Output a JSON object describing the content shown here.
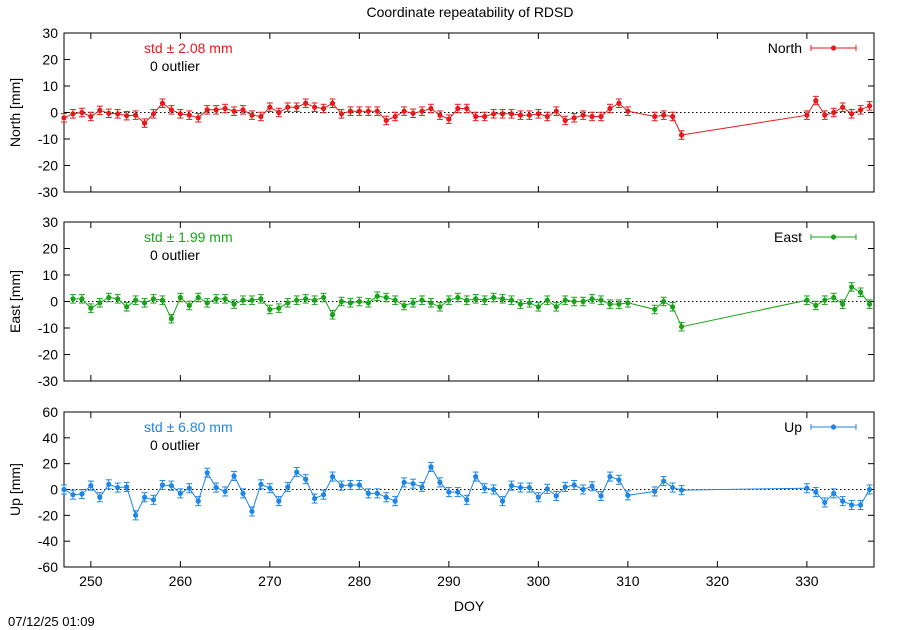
{
  "title": "Coordinate repeatability of RDSD",
  "timestamp": "07/12/25 01:09",
  "colors": {
    "North": "#e41a1c",
    "East": "#1aa31a",
    "Up": "#1f86e6"
  },
  "chart_data": [
    {
      "type": "line",
      "component": "North",
      "ylabel": "North [mm]",
      "xlabel": "",
      "xlim": [
        247,
        337.5
      ],
      "ylim": [
        -30,
        30
      ],
      "yticks": [
        -30,
        -20,
        -10,
        0,
        10,
        20,
        30
      ],
      "xticks": [
        250,
        260,
        270,
        280,
        290,
        300,
        310,
        320,
        330
      ],
      "std_label": "std ± 2.08 mm",
      "outlier_label": "0 outlier",
      "legend": "North",
      "legend_position": "top-right",
      "series": [
        {
          "name": "North",
          "x": [
            247,
            248,
            249,
            250,
            251,
            252,
            253,
            254,
            255,
            256,
            257,
            258,
            259,
            260,
            261,
            262,
            263,
            264,
            265,
            266,
            267,
            268,
            269,
            270,
            271,
            272,
            273,
            274,
            275,
            276,
            277,
            278,
            279,
            280,
            281,
            282,
            283,
            284,
            285,
            286,
            287,
            288,
            289,
            290,
            291,
            292,
            293,
            294,
            295,
            296,
            297,
            298,
            299,
            300,
            301,
            302,
            303,
            304,
            305,
            306,
            307,
            308,
            309,
            310,
            313,
            314,
            315,
            316,
            330,
            331,
            332,
            333,
            334,
            335,
            336,
            337
          ],
          "y": [
            -2,
            -0.5,
            0,
            -1.5,
            0.8,
            -0.3,
            -0.5,
            -1.2,
            -1,
            -4,
            -0.5,
            3.5,
            1,
            -0.5,
            -1,
            -2,
            1,
            1,
            1.5,
            0.5,
            1,
            -1,
            -1.5,
            2,
            0,
            2,
            2,
            3.5,
            2,
            1.5,
            3.5,
            -0.5,
            0.5,
            0.5,
            0.5,
            0.5,
            -3,
            -1.5,
            0.5,
            -0.3,
            0.5,
            1.5,
            -1,
            -2.5,
            1.5,
            1.5,
            -1.5,
            -1.5,
            -0.5,
            -0.5,
            -0.5,
            -1,
            -1,
            -0.5,
            -1.5,
            0.5,
            -3,
            -2,
            -1,
            -1.5,
            -1.5,
            1.5,
            3.5,
            0.5,
            -1.5,
            -1,
            -1.5,
            -8.5,
            -1,
            4.5,
            -1,
            0,
            2,
            -0.5,
            1,
            2.5
          ],
          "err": 1.6
        }
      ]
    },
    {
      "type": "line",
      "component": "East",
      "ylabel": "East [mm]",
      "xlabel": "",
      "xlim": [
        247,
        337.5
      ],
      "ylim": [
        -30,
        30
      ],
      "yticks": [
        -30,
        -20,
        -10,
        0,
        10,
        20,
        30
      ],
      "xticks": [
        250,
        260,
        270,
        280,
        290,
        300,
        310,
        320,
        330
      ],
      "std_label": "std ± 1.99 mm",
      "outlier_label": "0 outlier",
      "legend": "East",
      "legend_position": "top-right",
      "series": [
        {
          "name": "East",
          "x": [
            248,
            249,
            250,
            251,
            252,
            253,
            254,
            255,
            256,
            257,
            258,
            259,
            260,
            261,
            262,
            263,
            264,
            265,
            266,
            267,
            268,
            269,
            270,
            271,
            272,
            273,
            274,
            275,
            276,
            277,
            278,
            279,
            280,
            281,
            282,
            283,
            284,
            285,
            286,
            287,
            288,
            289,
            290,
            291,
            292,
            293,
            294,
            295,
            296,
            297,
            298,
            299,
            300,
            301,
            302,
            303,
            304,
            305,
            306,
            307,
            308,
            309,
            310,
            313,
            314,
            315,
            316,
            330,
            331,
            332,
            333,
            334,
            335,
            336,
            337
          ],
          "y": [
            1,
            1,
            -2.5,
            -0.5,
            1.5,
            1,
            -2,
            0.5,
            -0.5,
            1,
            0.5,
            -6.5,
            1.5,
            -1.5,
            1.5,
            -0.5,
            1,
            1,
            -1,
            0.5,
            0.5,
            1,
            -3,
            -2.5,
            -0.5,
            0.5,
            1,
            0.5,
            1.5,
            -5,
            0,
            -0.5,
            0,
            -0.5,
            2,
            1.5,
            0.5,
            -1.5,
            -0.5,
            0.5,
            -0.5,
            -2,
            0.5,
            1.5,
            0.5,
            1,
            0.5,
            1.5,
            1,
            0.5,
            -1,
            -0.5,
            -2,
            0.5,
            -2,
            0.5,
            0,
            0,
            1,
            0.5,
            -1,
            -1,
            -0.5,
            -3,
            0,
            -2,
            -9.5,
            0.5,
            -1.5,
            0.5,
            1.5,
            -1,
            5.5,
            3.5,
            -1
          ],
          "err": 1.6
        }
      ]
    },
    {
      "type": "line",
      "component": "Up",
      "ylabel": "Up [mm]",
      "xlabel": "DOY",
      "xlim": [
        247,
        337.5
      ],
      "ylim": [
        -60,
        60
      ],
      "yticks": [
        -60,
        -40,
        -20,
        0,
        20,
        40,
        60
      ],
      "xticks": [
        250,
        260,
        270,
        280,
        290,
        300,
        310,
        320,
        330
      ],
      "std_label": "std ± 6.80 mm",
      "outlier_label": "0 outlier",
      "legend": "Up",
      "legend_position": "top-right",
      "series": [
        {
          "name": "Up",
          "x": [
            247,
            248,
            249,
            250,
            251,
            252,
            253,
            254,
            255,
            256,
            257,
            258,
            259,
            260,
            261,
            262,
            263,
            264,
            265,
            266,
            267,
            268,
            269,
            270,
            271,
            272,
            273,
            274,
            275,
            276,
            277,
            278,
            279,
            280,
            281,
            282,
            283,
            284,
            285,
            286,
            287,
            288,
            289,
            290,
            291,
            292,
            293,
            294,
            295,
            296,
            297,
            298,
            299,
            300,
            301,
            302,
            303,
            304,
            305,
            306,
            307,
            308,
            309,
            310,
            313,
            314,
            315,
            316,
            330,
            331,
            332,
            333,
            334,
            335,
            336,
            337
          ],
          "y": [
            0,
            -4,
            -3.5,
            3,
            -6,
            4,
            1.5,
            2,
            -20,
            -6,
            -8,
            3.5,
            3,
            -3,
            1,
            -9,
            13,
            1.5,
            -1.5,
            10.5,
            -3,
            -17,
            4,
            1,
            -9,
            2,
            13.5,
            8,
            -7,
            -4,
            10,
            3,
            3.5,
            3.5,
            -3,
            -3,
            -6,
            -9,
            5.5,
            4.5,
            2,
            17.5,
            5.5,
            -2,
            -2,
            -8,
            10,
            1,
            0,
            -9,
            3,
            1.5,
            1.5,
            -6,
            0.5,
            -5,
            2,
            3.5,
            0,
            2.5,
            -5,
            10,
            7.5,
            -4.5,
            -1.5,
            6.5,
            1.5,
            -0.5,
            1,
            -2,
            -10,
            -3,
            -9,
            -12,
            -12,
            0
          ],
          "err": 3.5
        }
      ]
    }
  ]
}
